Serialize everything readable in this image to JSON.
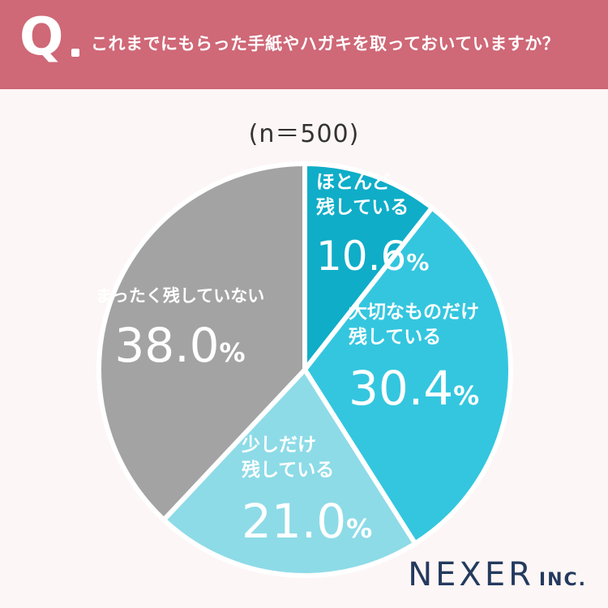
{
  "header": {
    "q_mark": "Q",
    "question": "これまでにもらった手紙やハガキを取っておいていますか？"
  },
  "sample_label": "(n＝500)",
  "brand": {
    "name": "NEXER",
    "suffix": "INC."
  },
  "chart_data": {
    "type": "pie",
    "start_angle_deg": 0,
    "direction": "clockwise",
    "slices": [
      {
        "label_lines": [
          "ほとんど",
          "残している"
        ],
        "value": 10.6,
        "value_text": "10.6",
        "unit": "%",
        "color": "#0fadc8",
        "text_color": "#ffffff"
      },
      {
        "label_lines": [
          "大切なものだけ",
          "残している"
        ],
        "value": 30.4,
        "value_text": "30.4",
        "unit": "%",
        "color": "#34c6df",
        "text_color": "#ffffff"
      },
      {
        "label_lines": [
          "少しだけ",
          "残している"
        ],
        "value": 21.0,
        "value_text": "21.0",
        "unit": "%",
        "color": "#8ddbe7",
        "text_color": "#ffffff"
      },
      {
        "label_lines": [
          "まったく残していない"
        ],
        "value": 38.0,
        "value_text": "38.0",
        "unit": "%",
        "color": "#a3a3a3",
        "text_color": "#ffffff"
      }
    ]
  }
}
